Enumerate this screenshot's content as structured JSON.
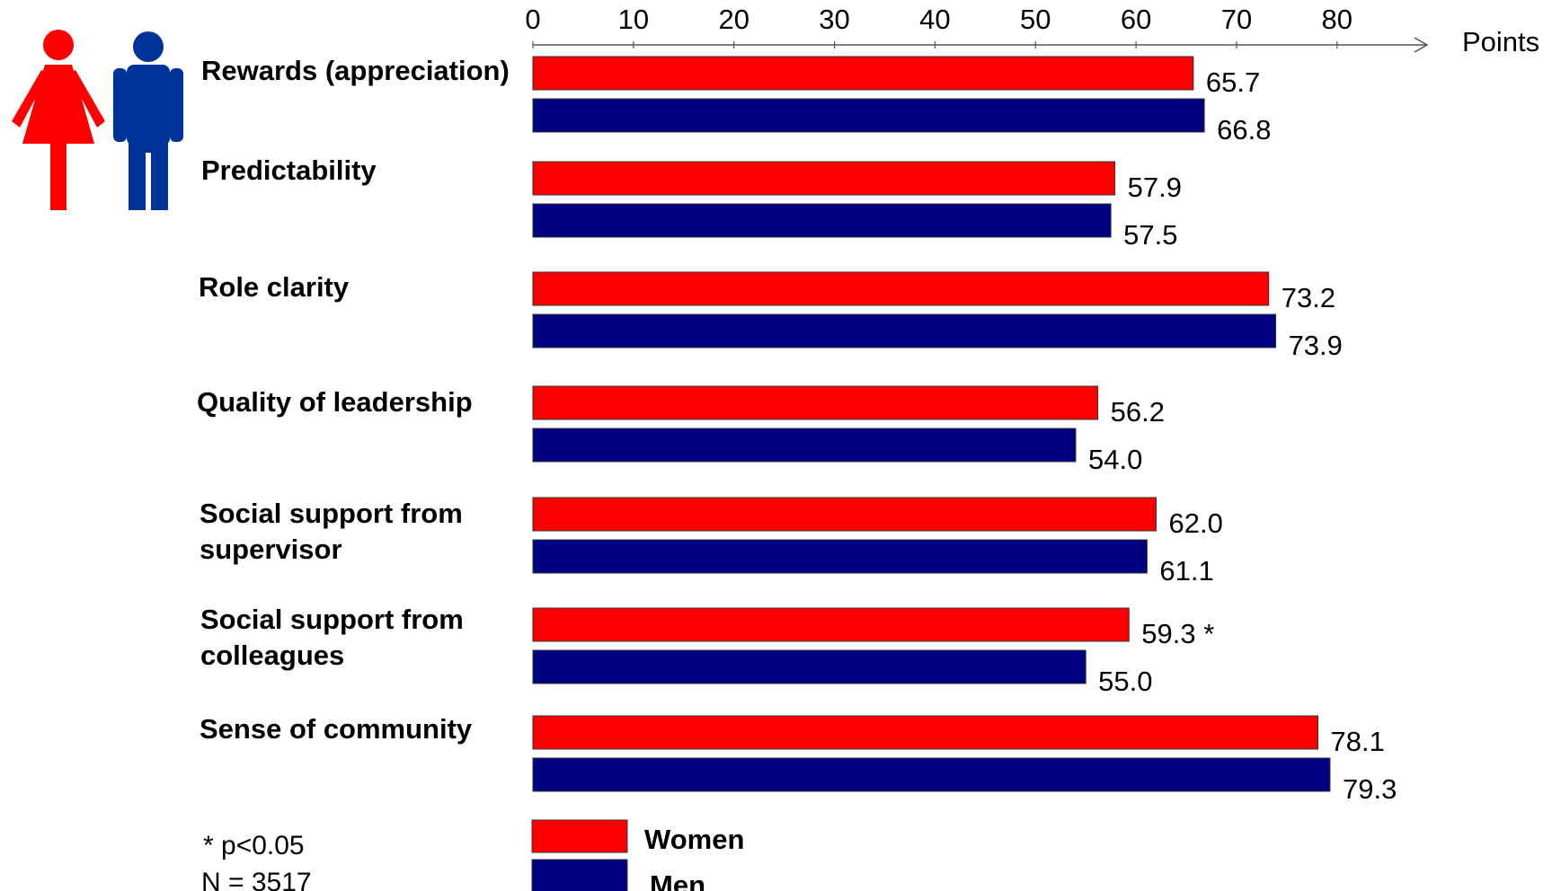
{
  "chart_data": {
    "type": "bar",
    "orientation": "horizontal",
    "categories": [
      "Rewards (appreciation)",
      "Predictability",
      "Role clarity",
      "Quality of leadership",
      "Social support from supervisor",
      "Social support from colleagues",
      "Sense of community"
    ],
    "category_lines": [
      [
        "Rewards (appreciation)"
      ],
      [
        "Predictability"
      ],
      [
        "Role clarity"
      ],
      [
        "Quality of leadership"
      ],
      [
        "Social support from",
        "supervisor"
      ],
      [
        "Social support from",
        "colleagues"
      ],
      [
        "Sense of community"
      ]
    ],
    "series": [
      {
        "name": "Women",
        "color": "#ff0000",
        "values": [
          65.7,
          57.9,
          73.2,
          56.2,
          62.0,
          59.3,
          78.1
        ],
        "labels": [
          "65.7",
          "57.9",
          "73.2",
          "56.2",
          "62.0",
          "59.3 *",
          "78.1"
        ]
      },
      {
        "name": "Men",
        "color": "#000080",
        "values": [
          66.8,
          57.5,
          73.9,
          54.0,
          61.1,
          55.0,
          79.3
        ],
        "labels": [
          "66.8",
          "57.5",
          "73.9",
          "54.0",
          "61.1",
          "55.0",
          "79.3"
        ]
      }
    ],
    "x_ticks": [
      "0",
      "10",
      "20",
      "30",
      "40",
      "50",
      "60",
      "70",
      "80"
    ],
    "xlim": [
      0,
      80
    ],
    "xlabel": "Points",
    "x_axis_position": "top",
    "grid": false,
    "legend_position": "bottom",
    "notes": [
      "* p<0.05",
      "N = 3517"
    ]
  },
  "icons": {
    "woman": {
      "name": "woman-icon",
      "color": "#ff0000"
    },
    "man": {
      "name": "man-icon",
      "color": "#003399"
    }
  }
}
